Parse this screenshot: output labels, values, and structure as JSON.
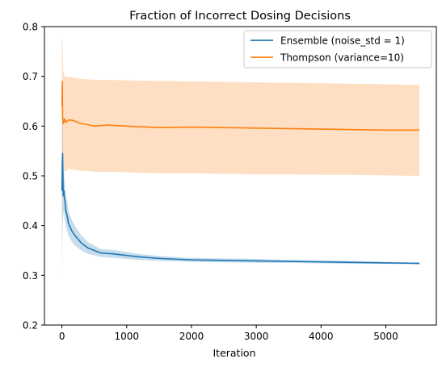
{
  "chart_data": {
    "type": "line",
    "title": "Fraction of Incorrect Dosing Decisions",
    "xlabel": "Iteration",
    "ylabel": "",
    "xlim": [
      -270,
      5780
    ],
    "ylim": [
      0.2,
      0.8
    ],
    "xticks": [
      0,
      1000,
      2000,
      3000,
      4000,
      5000
    ],
    "yticks": [
      0.2,
      0.3,
      0.4,
      0.5,
      0.6,
      0.7,
      0.8
    ],
    "xtick_labels": [
      "0",
      "1000",
      "2000",
      "3000",
      "4000",
      "5000"
    ],
    "ytick_labels": [
      "0.2",
      "0.3",
      "0.4",
      "0.5",
      "0.6",
      "0.7",
      "0.8"
    ],
    "legend_position": "top-right",
    "grid": false,
    "series": [
      {
        "name": "Ensemble (noise_std = 1)",
        "color": "#1f77b4",
        "band_color": "#1f77b4",
        "x": [
          1,
          5,
          10,
          20,
          30,
          40,
          50,
          60,
          80,
          100,
          150,
          200,
          300,
          400,
          500,
          600,
          800,
          1000,
          1200,
          1500,
          2000,
          2500,
          3000,
          3500,
          4000,
          4500,
          5000,
          5520
        ],
        "y": [
          0.47,
          0.52,
          0.545,
          0.46,
          0.47,
          0.455,
          0.445,
          0.43,
          0.42,
          0.405,
          0.39,
          0.38,
          0.365,
          0.355,
          0.35,
          0.345,
          0.343,
          0.34,
          0.337,
          0.334,
          0.331,
          0.33,
          0.329,
          0.328,
          0.327,
          0.326,
          0.325,
          0.324
        ],
        "lower": [
          0.3,
          0.36,
          0.4,
          0.42,
          0.43,
          0.415,
          0.41,
          0.4,
          0.39,
          0.38,
          0.368,
          0.36,
          0.35,
          0.343,
          0.34,
          0.337,
          0.335,
          0.333,
          0.331,
          0.329,
          0.327,
          0.326,
          0.325,
          0.325,
          0.324,
          0.323,
          0.323,
          0.322
        ],
        "upper": [
          0.64,
          0.68,
          0.69,
          0.5,
          0.51,
          0.495,
          0.48,
          0.46,
          0.45,
          0.43,
          0.412,
          0.4,
          0.38,
          0.367,
          0.36,
          0.353,
          0.351,
          0.347,
          0.343,
          0.339,
          0.335,
          0.334,
          0.333,
          0.331,
          0.33,
          0.329,
          0.327,
          0.326
        ]
      },
      {
        "name": "Thompson (variance=10)",
        "color": "#ff7f0e",
        "band_color": "#ff7f0e",
        "x": [
          1,
          5,
          10,
          20,
          30,
          40,
          60,
          80,
          100,
          150,
          200,
          250,
          300,
          400,
          500,
          700,
          1000,
          1500,
          2000,
          2500,
          3000,
          3500,
          4000,
          4500,
          5000,
          5520
        ],
        "y": [
          0.64,
          0.69,
          0.62,
          0.605,
          0.61,
          0.615,
          0.607,
          0.61,
          0.612,
          0.612,
          0.61,
          0.607,
          0.605,
          0.603,
          0.6,
          0.602,
          0.6,
          0.597,
          0.598,
          0.597,
          0.596,
          0.595,
          0.594,
          0.593,
          0.592,
          0.592
        ],
        "lower": [
          0.3,
          0.4,
          0.47,
          0.5,
          0.505,
          0.51,
          0.51,
          0.512,
          0.514,
          0.513,
          0.512,
          0.511,
          0.51,
          0.51,
          0.508,
          0.508,
          0.507,
          0.505,
          0.505,
          0.504,
          0.503,
          0.503,
          0.502,
          0.502,
          0.501,
          0.5
        ],
        "upper": [
          0.78,
          0.78,
          0.77,
          0.71,
          0.705,
          0.7,
          0.7,
          0.698,
          0.699,
          0.698,
          0.697,
          0.696,
          0.695,
          0.694,
          0.693,
          0.693,
          0.692,
          0.691,
          0.69,
          0.689,
          0.688,
          0.687,
          0.686,
          0.685,
          0.684,
          0.683
        ]
      }
    ]
  }
}
